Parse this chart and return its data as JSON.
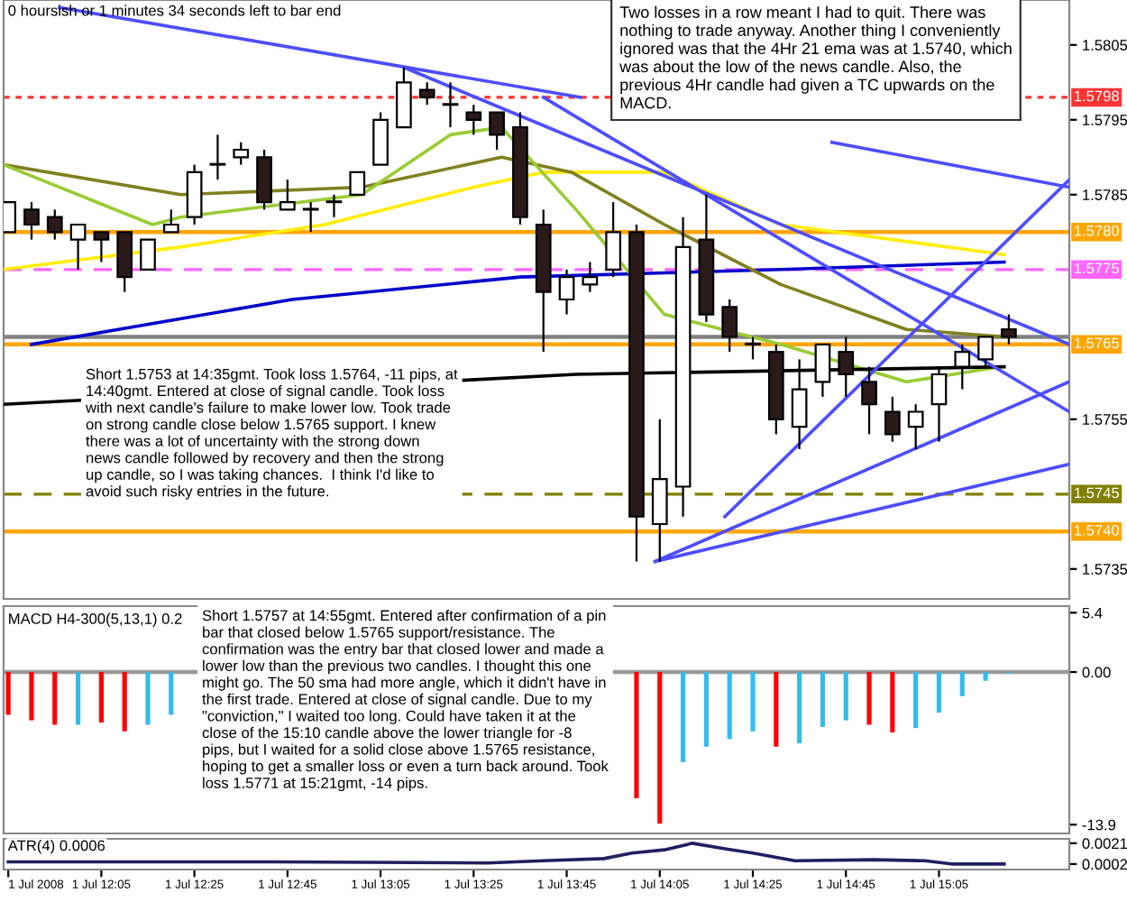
{
  "chart_data": [
    {
      "type": "candlestick",
      "x": [
        "2008-07-01T11:45",
        "2008-07-01T11:50",
        "2008-07-01T11:55",
        "2008-07-01T12:00",
        "2008-07-01T12:05",
        "2008-07-01T12:10",
        "2008-07-01T12:15",
        "2008-07-01T12:20",
        "2008-07-01T12:25",
        "2008-07-01T12:30",
        "2008-07-01T12:35",
        "2008-07-01T12:40",
        "2008-07-01T12:45",
        "2008-07-01T12:50",
        "2008-07-01T12:55",
        "2008-07-01T13:00",
        "2008-07-01T13:05",
        "2008-07-01T13:10",
        "2008-07-01T13:15",
        "2008-07-01T13:20",
        "2008-07-01T13:25",
        "2008-07-01T13:30",
        "2008-07-01T13:35",
        "2008-07-01T13:40",
        "2008-07-01T13:45",
        "2008-07-01T13:50",
        "2008-07-01T13:55",
        "2008-07-01T14:00",
        "2008-07-01T14:05",
        "2008-07-01T14:10",
        "2008-07-01T14:15",
        "2008-07-01T14:20",
        "2008-07-01T14:25",
        "2008-07-01T14:30",
        "2008-07-01T14:35",
        "2008-07-01T14:40",
        "2008-07-01T14:45",
        "2008-07-01T14:50",
        "2008-07-01T14:55",
        "2008-07-01T15:00",
        "2008-07-01T15:05",
        "2008-07-01T15:10",
        "2008-07-01T15:15",
        "2008-07-01T15:20"
      ],
      "ohlc": [
        [
          1.578,
          1.5784,
          1.578,
          1.5784
        ],
        [
          1.5783,
          1.5784,
          1.5779,
          1.5781
        ],
        [
          1.5782,
          1.5783,
          1.5779,
          1.578
        ],
        [
          1.5779,
          1.5781,
          1.5775,
          1.5781
        ],
        [
          1.578,
          1.578,
          1.5776,
          1.5779
        ],
        [
          1.578,
          1.578,
          1.5772,
          1.5774
        ],
        [
          1.5775,
          1.5779,
          1.5775,
          1.5779
        ],
        [
          1.578,
          1.5783,
          1.578,
          1.5781
        ],
        [
          1.5782,
          1.5789,
          1.5781,
          1.5788
        ],
        [
          1.5789,
          1.5793,
          1.5787,
          1.5789
        ],
        [
          1.579,
          1.5792,
          1.5789,
          1.5791
        ],
        [
          1.579,
          1.5791,
          1.5783,
          1.5784
        ],
        [
          1.5783,
          1.5787,
          1.5783,
          1.5784
        ],
        [
          1.5783,
          1.5784,
          1.578,
          1.5783
        ],
        [
          1.5784,
          1.5785,
          1.5782,
          1.5784
        ],
        [
          1.5785,
          1.5788,
          1.5785,
          1.5788
        ],
        [
          1.5789,
          1.5796,
          1.5789,
          1.5795
        ],
        [
          1.5794,
          1.5802,
          1.5794,
          1.58
        ],
        [
          1.5799,
          1.58,
          1.5797,
          1.5798
        ],
        [
          1.5797,
          1.58,
          1.5794,
          1.5797
        ],
        [
          1.5796,
          1.5797,
          1.5793,
          1.5795
        ],
        [
          1.5796,
          1.5796,
          1.5791,
          1.5793
        ],
        [
          1.5794,
          1.5796,
          1.5781,
          1.5782
        ],
        [
          1.5781,
          1.5783,
          1.5764,
          1.5772
        ],
        [
          1.5771,
          1.5775,
          1.5769,
          1.5774
        ],
        [
          1.5773,
          1.5776,
          1.5772,
          1.5774
        ],
        [
          1.5775,
          1.5784,
          1.5774,
          1.578
        ],
        [
          1.578,
          1.5781,
          1.5736,
          1.5742
        ],
        [
          1.5741,
          1.5755,
          1.5736,
          1.5747
        ],
        [
          1.5746,
          1.5782,
          1.5742,
          1.5778
        ],
        [
          1.5779,
          1.5785,
          1.5768,
          1.5769
        ],
        [
          1.577,
          1.5771,
          1.5764,
          1.5766
        ],
        [
          1.5765,
          1.5766,
          1.5763,
          1.5765
        ],
        [
          1.5764,
          1.5765,
          1.5753,
          1.5755
        ],
        [
          1.5754,
          1.5763,
          1.5751,
          1.5759
        ],
        [
          1.576,
          1.5765,
          1.5758,
          1.5765
        ],
        [
          1.5764,
          1.5766,
          1.5758,
          1.5761
        ],
        [
          1.576,
          1.5762,
          1.5753,
          1.5757
        ],
        [
          1.5756,
          1.5758,
          1.5752,
          1.5753
        ],
        [
          1.5754,
          1.5757,
          1.5751,
          1.5756
        ],
        [
          1.5757,
          1.5762,
          1.5752,
          1.5761
        ],
        [
          1.5762,
          1.5765,
          1.5759,
          1.5764
        ],
        [
          1.5763,
          1.5766,
          1.5762,
          1.5766
        ],
        [
          1.5767,
          1.5769,
          1.5765,
          1.5766
        ]
      ],
      "series": [
        {
          "type": "line",
          "color": "#ffee00",
          "x": [
            "2008-07-01T11:44",
            "2008-07-01T12:22",
            "2008-07-01T12:53",
            "2008-07-01T13:25",
            "2008-07-01T13:40",
            "2008-07-01T14:06",
            "2008-07-01T14:31",
            "2008-07-01T15:19"
          ],
          "values": [
            1.5775,
            1.5778,
            1.5781,
            1.5786,
            1.5788,
            1.5788,
            1.5781,
            1.5777
          ]
        },
        {
          "type": "line",
          "color": "#0000cc",
          "x": [
            "2008-07-01T11:50",
            "2008-07-01T12:46",
            "2008-07-01T13:35",
            "2008-07-01T14:31",
            "2008-07-01T15:19"
          ],
          "values": [
            1.5765,
            1.5771,
            1.5774,
            1.5775,
            1.5776
          ]
        },
        {
          "type": "line",
          "color": "#808020",
          "x": [
            "2008-07-01T11:44",
            "2008-07-01T12:22",
            "2008-07-01T13:01",
            "2008-07-01T13:31",
            "2008-07-01T13:46",
            "2008-07-01T14:06",
            "2008-07-01T14:31",
            "2008-07-01T14:58",
            "2008-07-01T15:19"
          ],
          "values": [
            1.5789,
            1.5785,
            1.5786,
            1.579,
            1.5788,
            1.5781,
            1.5773,
            1.5767,
            1.5766
          ]
        },
        {
          "type": "line",
          "color": "#99cc33",
          "x": [
            "2008-07-01T11:44",
            "2008-07-01T12:16",
            "2008-07-01T12:22",
            "2008-07-01T13:01",
            "2008-07-01T13:20",
            "2008-07-01T13:31",
            "2008-07-01T13:47",
            "2008-07-01T14:06",
            "2008-07-01T14:31",
            "2008-07-01T14:58",
            "2008-07-01T15:18"
          ],
          "values": [
            1.5789,
            1.5781,
            1.5782,
            1.5785,
            1.5793,
            1.5794,
            1.5783,
            1.5769,
            1.5765,
            1.576,
            1.5762
          ]
        },
        {
          "type": "line",
          "color": "#000000",
          "x": [
            "2008-07-01T11:44",
            "2008-07-01T13:47",
            "2008-07-01T15:19"
          ],
          "values": [
            1.5757,
            1.5761,
            1.5762
          ]
        },
        {
          "type": "line",
          "color": "#4d4dff",
          "x": [
            "2008-07-01T11:56",
            "2008-07-01T13:48"
          ],
          "values": [
            1.581,
            1.5798
          ]
        },
        {
          "type": "line",
          "color": "#4d4dff",
          "x": [
            "2008-07-01T13:10",
            "2008-07-01T15:33"
          ],
          "values": [
            1.5802,
            1.5765
          ]
        },
        {
          "type": "line",
          "color": "#4d4dff",
          "x": [
            "2008-07-01T14:42",
            "2008-07-01T15:33"
          ],
          "values": [
            1.5792,
            1.5786
          ]
        },
        {
          "type": "line",
          "color": "#4d4dff",
          "x": [
            "2008-07-01T13:40",
            "2008-07-01T15:33"
          ],
          "values": [
            1.5798,
            1.5756
          ]
        },
        {
          "type": "line",
          "color": "#4d4dff",
          "x": [
            "2008-07-01T14:04",
            "2008-07-01T15:33"
          ],
          "values": [
            1.5736,
            1.5749
          ]
        },
        {
          "type": "line",
          "color": "#4d4dff",
          "x": [
            "2008-07-01T14:04",
            "2008-07-01T15:33"
          ],
          "values": [
            1.5736,
            1.576
          ]
        },
        {
          "type": "line",
          "color": "#4d4dff",
          "x": [
            "2008-07-01T14:19",
            "2008-07-01T15:33"
          ],
          "values": [
            1.5742,
            1.5787
          ]
        }
      ],
      "xlim": [
        "2008-07-01T11:44",
        "2008-07-01T15:33"
      ],
      "ylim": [
        1.5731,
        1.5811
      ],
      "yticks": [
        {
          "value": 1.5805,
          "label": "1.5805"
        },
        {
          "value": 1.5795,
          "label": "1.5795"
        },
        {
          "value": 1.5785,
          "label": "1.5785"
        },
        {
          "value": 1.5755,
          "label": "1.5755"
        },
        {
          "value": 1.5735,
          "label": "1.5735"
        }
      ],
      "tick_labels": "y",
      "ref_lines": [
        {
          "axis": "y",
          "value": 1.5798,
          "label": "1.5798",
          "color": "#ff3333",
          "line_style": "dotted"
        },
        {
          "axis": "y",
          "value": 1.578,
          "label": "1.5780",
          "color": "#ffa500",
          "line_style": "solid"
        },
        {
          "axis": "y",
          "value": 1.5775,
          "label": "1.5775",
          "color": "#ff66ff",
          "line_style": "dashed"
        },
        {
          "axis": "y",
          "value": 1.5766,
          "color": "#808080",
          "line_style": "solid"
        },
        {
          "axis": "y",
          "value": 1.5765,
          "label": "1.5765",
          "color": "#ffa500",
          "line_style": "solid"
        },
        {
          "axis": "y",
          "value": 1.5745,
          "label": "1.5745",
          "color": "#808000",
          "line_style": "dashed"
        },
        {
          "axis": "y",
          "value": 1.574,
          "label": "1.5740",
          "color": "#ffa500",
          "line_style": "solid"
        }
      ],
      "annotations": [
        "0 hoursish or 1 minutes 34 seconds left to bar end",
        "Two losses in a row meant I had to quit. There was\nnothing to trade anyway. Another thing I conveniently\nignored was that the 4Hr 21 ema was at 1.5740, which\nwas about the low of the news candle. Also, the\nprevious 4Hr candle had given a TC upwards on the\nMACD.",
        "Short 1.5753 at 14:35gmt. Took loss 1.5764, -11 pips, at\n14:40gmt. Entered at close of signal candle. Took loss\nwith next candle's failure to make lower low. Took trade\non strong candle close below 1.5765 support. I knew\nthere was a lot of uncertainty with the strong down\nnews candle followed by recovery and then the strong\nup candle, so I was taking chances.  I think I'd like to\navoid such risky entries in the future."
      ]
    },
    {
      "type": "bar",
      "title": "MACD H4-300(5,13,1) 0.2",
      "x": [
        "2008-07-01T11:45",
        "2008-07-01T11:50",
        "2008-07-01T11:55",
        "2008-07-01T12:00",
        "2008-07-01T12:05",
        "2008-07-01T12:10",
        "2008-07-01T12:15",
        "2008-07-01T12:20",
        "2008-07-01T12:25",
        "2008-07-01T12:30",
        "2008-07-01T12:35",
        "2008-07-01T12:40",
        "2008-07-01T12:45",
        "2008-07-01T12:50",
        "2008-07-01T12:55",
        "2008-07-01T13:00",
        "2008-07-01T13:05",
        "2008-07-01T13:10",
        "2008-07-01T13:15",
        "2008-07-01T13:20",
        "2008-07-01T13:25",
        "2008-07-01T13:30",
        "2008-07-01T13:35",
        "2008-07-01T13:40",
        "2008-07-01T13:45",
        "2008-07-01T13:50",
        "2008-07-01T13:55",
        "2008-07-01T14:00",
        "2008-07-01T14:05",
        "2008-07-01T14:10",
        "2008-07-01T14:15",
        "2008-07-01T14:20",
        "2008-07-01T14:25",
        "2008-07-01T14:30",
        "2008-07-01T14:35",
        "2008-07-01T14:40",
        "2008-07-01T14:45",
        "2008-07-01T14:50",
        "2008-07-01T14:55",
        "2008-07-01T15:00",
        "2008-07-01T15:05",
        "2008-07-01T15:10",
        "2008-07-01T15:15",
        "2008-07-01T15:20"
      ],
      "values": [
        -3.9,
        -4.4,
        -4.8,
        -4.8,
        -4.6,
        -5.4,
        -4.8,
        -3.9,
        null,
        null,
        null,
        null,
        null,
        null,
        null,
        null,
        null,
        null,
        null,
        null,
        null,
        null,
        null,
        null,
        null,
        null,
        null,
        -11.5,
        -13.8,
        -8.2,
        -6.8,
        -6.1,
        -5.4,
        -6.8,
        -6.5,
        -5.0,
        -4.4,
        -4.8,
        -5.5,
        -5.1,
        -3.7,
        -2.2,
        -0.8,
        -0.1
      ],
      "colors": [
        "#ff0000",
        "#ff0000",
        "#ff0000",
        "#33bbee",
        "#ff0000",
        "#ff0000",
        "#33bbee",
        "#33bbee",
        null,
        null,
        null,
        null,
        null,
        null,
        null,
        null,
        null,
        null,
        null,
        null,
        null,
        null,
        null,
        null,
        null,
        null,
        null,
        "#ff0000",
        "#ff0000",
        "#33bbee",
        "#33bbee",
        "#33bbee",
        "#33bbee",
        "#ff0000",
        "#33bbee",
        "#33bbee",
        "#33bbee",
        "#ff0000",
        "#ff0000",
        "#33bbee",
        "#33bbee",
        "#33bbee",
        "#33bbee",
        "#33bbee"
      ],
      "xlim": [
        "2008-07-01T11:44",
        "2008-07-01T15:33"
      ],
      "ylim": [
        -14.7,
        6.0
      ],
      "yticks": [
        5.4,
        {
          "value": 0,
          "label": "0.00"
        },
        -13.9
      ],
      "tick_labels": "y",
      "ref_lines": [
        {
          "axis": "y",
          "value": 0,
          "color": "#999999",
          "line_style": "solid"
        }
      ],
      "annotations": [
        "Short 1.5757 at 14:55gmt. Entered after confirmation of a pin\nbar that closed below 1.5765 support/resistance. The\nconfirmation was the entry bar that closed lower and made a\nlower low than the previous two candles. I thought this one\nmight go. The 50 sma had more angle, which it didn't have in\nthe first trade. Entered at close of signal candle. Due to my\n\"conviction,\" I waited too long. Could have taken it at the\nclose of the 15:10 candle above the lower triangle for -8\npips, but I waited for a solid close above 1.5765 resistance,\nhoping to get a smaller loss or even a turn back around. Took\nloss 1.5771 at 15:21gmt, -14 pips."
      ]
    },
    {
      "type": "line",
      "title": "ATR(4) 0.0006",
      "color": "#202060",
      "x": [
        "2008-07-01T11:45",
        "2008-07-01T12:42",
        "2008-07-01T13:28",
        "2008-07-01T13:40",
        "2008-07-01T13:53",
        "2008-07-01T13:59",
        "2008-07-01T14:06",
        "2008-07-01T14:12",
        "2008-07-01T14:19",
        "2008-07-01T14:25",
        "2008-07-01T14:34",
        "2008-07-01T14:51",
        "2008-07-01T15:02",
        "2008-07-01T15:08",
        "2008-07-01T15:19"
      ],
      "values": [
        0.0004,
        0.0004,
        0.0003,
        0.0005,
        0.0007,
        0.0012,
        0.0015,
        0.0021,
        0.0016,
        0.0012,
        0.0005,
        0.0006,
        0.0005,
        0.0002,
        0.0002
      ],
      "xlim": [
        "2008-07-01T11:44",
        "2008-07-01T15:33"
      ],
      "ylim": [
        -0.0003,
        0.0025
      ],
      "xticks": [
        {
          "value": "2008-07-01T11:45",
          "label": "1 Jul 2008"
        },
        {
          "value": "2008-07-01T12:05",
          "label": "1 Jul 12:05"
        },
        {
          "value": "2008-07-01T12:25",
          "label": "1 Jul 12:25"
        },
        {
          "value": "2008-07-01T12:45",
          "label": "1 Jul 12:45"
        },
        {
          "value": "2008-07-01T13:05",
          "label": "1 Jul 13:05"
        },
        {
          "value": "2008-07-01T13:25",
          "label": "1 Jul 13:25"
        },
        {
          "value": "2008-07-01T13:45",
          "label": "1 Jul 13:45"
        },
        {
          "value": "2008-07-01T14:05",
          "label": "1 Jul 14:05"
        },
        {
          "value": "2008-07-01T14:25",
          "label": "1 Jul 14:25"
        },
        {
          "value": "2008-07-01T14:45",
          "label": "1 Jul 14:45"
        },
        {
          "value": "2008-07-01T15:05",
          "label": "1 Jul 15:05"
        }
      ],
      "yticks": [
        {
          "value": 0.0021,
          "label": "0.0021"
        },
        {
          "value": 0.0002,
          "label": "0.0002"
        }
      ]
    }
  ]
}
